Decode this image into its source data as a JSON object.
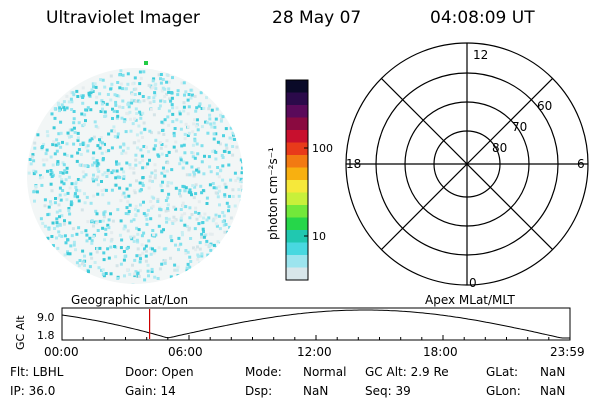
{
  "header": {
    "instrument": "Ultraviolet Imager",
    "date": "28 May 07",
    "time": "04:08:09 UT"
  },
  "colorbar": {
    "unit_label": "photon cm⁻²s⁻¹",
    "tick_labels": [
      "100",
      "10"
    ],
    "colors": [
      "#0a0a28",
      "#2b0a4a",
      "#5a0a5a",
      "#8a0a40",
      "#c8102e",
      "#e83a1a",
      "#f27a12",
      "#f8b010",
      "#f6e83a",
      "#c8f03a",
      "#72e83a",
      "#26d64a",
      "#20c8b0",
      "#48d8e0",
      "#9ce4ee",
      "#d8e6ea"
    ]
  },
  "polar_plot": {
    "mlt_labels": [
      "12",
      "18",
      "6",
      "0"
    ],
    "lat_labels": [
      "60",
      "70",
      "80"
    ]
  },
  "timeline": {
    "left_title": "Geographic Lat/Lon",
    "right_title": "Apex MLat/MLT",
    "y_axis_label": "GC Alt",
    "y_ticks": [
      "9.0",
      "1.8"
    ],
    "x_ticks": [
      "00:00",
      "06:00",
      "12:00",
      "18:00",
      "23:59"
    ],
    "current_time_hours": 4.14
  },
  "status": {
    "flt": "Flt: LBHL",
    "ip": "IP: 36.0",
    "door": "Door: Open",
    "gain": "Gain: 14",
    "mode_label": "Mode:",
    "mode_value": "Normal",
    "dsp_label": "Dsp:",
    "dsp_value": "NaN",
    "gc_alt": "GC Alt: 2.9 Re",
    "seq": "Seq: 39",
    "glat_label": "GLat:",
    "glat_value": "NaN",
    "glon_label": "GLon:",
    "glon_value": "NaN"
  }
}
